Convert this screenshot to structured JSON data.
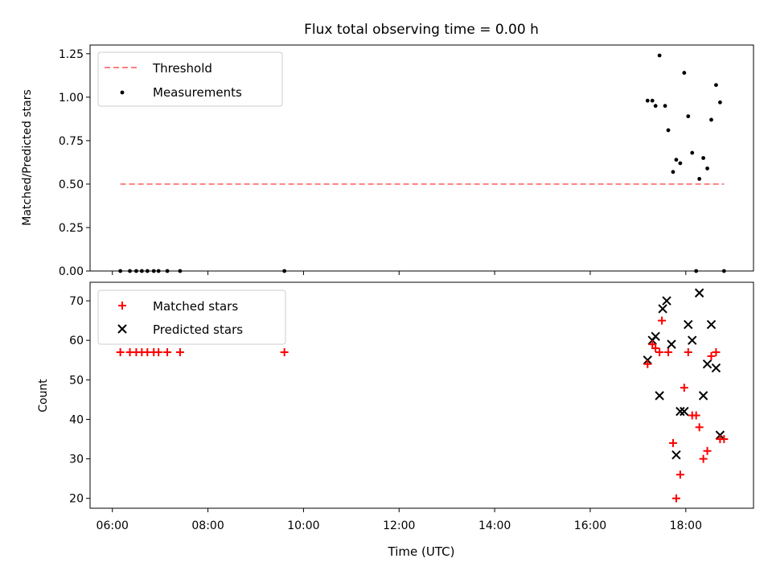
{
  "chart_data": [
    {
      "type": "scatter",
      "title": "Flux total observing time = 0.00 h",
      "xlabel": "",
      "ylabel": "Matched/Predicted stars",
      "ylim": [
        0,
        1.3
      ],
      "xlim": [
        "05:32",
        "19:25"
      ],
      "yticks": [
        "0.00",
        "0.25",
        "0.50",
        "0.75",
        "1.00",
        "1.25"
      ],
      "grid": false,
      "legend_position": "top-left",
      "threshold": {
        "name": "Threshold",
        "y": 0.5,
        "x_range": [
          "06:10",
          "18:48"
        ],
        "color": "#ff7f7f",
        "style": "dashed"
      },
      "series": [
        {
          "name": "Measurements",
          "color": "#000000",
          "marker": "dot",
          "points": [
            [
              "06:10",
              0.0
            ],
            [
              "06:22",
              0.0
            ],
            [
              "06:30",
              0.0
            ],
            [
              "06:37",
              0.0
            ],
            [
              "06:44",
              0.0
            ],
            [
              "06:52",
              0.0
            ],
            [
              "06:58",
              0.0
            ],
            [
              "07:09",
              0.0
            ],
            [
              "07:25",
              0.0
            ],
            [
              "09:36",
              0.0
            ],
            [
              "17:12",
              0.98
            ],
            [
              "17:18",
              0.98
            ],
            [
              "17:22",
              0.95
            ],
            [
              "17:27",
              1.24
            ],
            [
              "17:34",
              0.95
            ],
            [
              "17:38",
              0.81
            ],
            [
              "17:44",
              0.57
            ],
            [
              "17:48",
              0.64
            ],
            [
              "17:53",
              0.62
            ],
            [
              "17:58",
              1.14
            ],
            [
              "18:03",
              0.89
            ],
            [
              "18:08",
              0.68
            ],
            [
              "18:13",
              0.0
            ],
            [
              "18:17",
              0.53
            ],
            [
              "18:22",
              0.65
            ],
            [
              "18:27",
              0.59
            ],
            [
              "18:32",
              0.87
            ],
            [
              "18:38",
              1.07
            ],
            [
              "18:43",
              0.97
            ],
            [
              "18:48",
              0.0
            ]
          ]
        }
      ]
    },
    {
      "type": "scatter",
      "title": "",
      "xlabel": "Time (UTC)",
      "ylabel": "Count",
      "ylim": [
        17.5,
        74.7
      ],
      "xlim": [
        "05:32",
        "19:25"
      ],
      "yticks": [
        "20",
        "30",
        "40",
        "50",
        "60",
        "70"
      ],
      "xticks": [
        "06:00",
        "08:00",
        "10:00",
        "12:00",
        "14:00",
        "16:00",
        "18:00"
      ],
      "grid": false,
      "legend_position": "top-left",
      "series": [
        {
          "name": "Matched stars",
          "color": "#ff0000",
          "marker": "plus",
          "points": [
            [
              "06:10",
              57
            ],
            [
              "06:22",
              57
            ],
            [
              "06:30",
              57
            ],
            [
              "06:37",
              57
            ],
            [
              "06:44",
              57
            ],
            [
              "06:52",
              57
            ],
            [
              "06:58",
              57
            ],
            [
              "07:09",
              57
            ],
            [
              "07:25",
              57
            ],
            [
              "09:36",
              57
            ],
            [
              "17:12",
              54
            ],
            [
              "17:18",
              59
            ],
            [
              "17:22",
              58
            ],
            [
              "17:27",
              57
            ],
            [
              "17:30",
              65
            ],
            [
              "17:38",
              57
            ],
            [
              "17:44",
              34
            ],
            [
              "17:48",
              20
            ],
            [
              "17:53",
              26
            ],
            [
              "17:58",
              48
            ],
            [
              "18:03",
              57
            ],
            [
              "18:08",
              41
            ],
            [
              "18:13",
              41
            ],
            [
              "18:17",
              38
            ],
            [
              "18:22",
              30
            ],
            [
              "18:27",
              32
            ],
            [
              "18:32",
              56
            ],
            [
              "18:38",
              57
            ],
            [
              "18:43",
              35
            ],
            [
              "18:48",
              35
            ]
          ]
        },
        {
          "name": "Predicted stars",
          "color": "#000000",
          "marker": "x",
          "points": [
            [
              "17:12",
              55
            ],
            [
              "17:18",
              60
            ],
            [
              "17:22",
              61
            ],
            [
              "17:27",
              46
            ],
            [
              "17:31",
              68
            ],
            [
              "17:36",
              70
            ],
            [
              "17:42",
              59
            ],
            [
              "17:48",
              31
            ],
            [
              "17:53",
              42
            ],
            [
              "17:58",
              42
            ],
            [
              "18:03",
              64
            ],
            [
              "18:08",
              60
            ],
            [
              "18:17",
              72
            ],
            [
              "18:22",
              46
            ],
            [
              "18:27",
              54
            ],
            [
              "18:32",
              64
            ],
            [
              "18:38",
              53
            ],
            [
              "18:43",
              36
            ]
          ]
        }
      ]
    }
  ]
}
